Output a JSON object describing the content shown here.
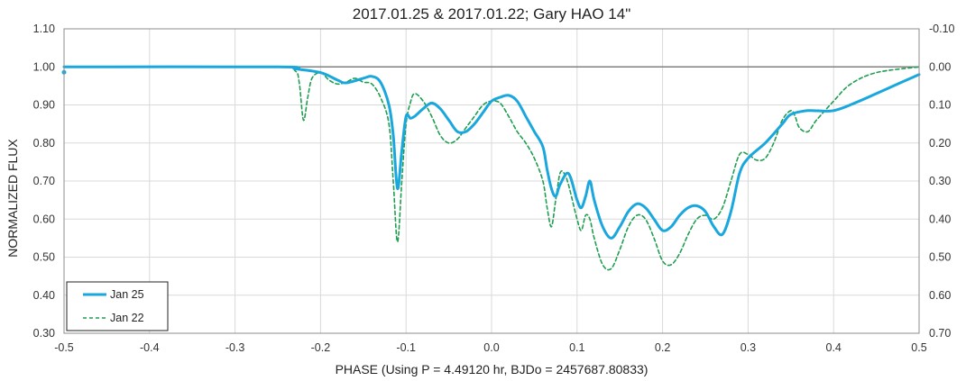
{
  "chart_data": {
    "type": "line",
    "title": "2017.01.25 & 2017.01.22; Gary HAO 14\"",
    "xlabel": "PHASE (Using P = 4.49120 hr, BJDo = 2457687.80833)",
    "ylabel": "NORMALIZED FLUX",
    "xlim": [
      -0.5,
      0.5
    ],
    "ylim": [
      0.3,
      1.1
    ],
    "y2lim": [
      0.7,
      -0.1
    ],
    "xticks": [
      "-0.5",
      "-0.4",
      "-0.3",
      "-0.2",
      "-0.1",
      "0.0",
      "0.1",
      "0.2",
      "0.3",
      "0.4",
      "0.5"
    ],
    "yticks": [
      "0.30",
      "0.40",
      "0.50",
      "0.60",
      "0.70",
      "0.80",
      "0.90",
      "1.00",
      "1.10"
    ],
    "y2ticks": [
      "0.70",
      "0.60",
      "0.50",
      "0.40",
      "0.30",
      "0.20",
      "0.10",
      "0.00",
      "-0.10"
    ],
    "grid": true,
    "reference_line": 1.0,
    "legend_position": "bottom-left",
    "series": [
      {
        "name": "Jan 25",
        "color": "#1aa7dd",
        "style": "solid",
        "x": [
          -0.5,
          -0.25,
          -0.23,
          -0.2,
          -0.18,
          -0.17,
          -0.15,
          -0.14,
          -0.13,
          -0.12,
          -0.115,
          -0.11,
          -0.105,
          -0.1,
          -0.095,
          -0.09,
          -0.08,
          -0.07,
          -0.06,
          -0.05,
          -0.04,
          -0.03,
          -0.02,
          -0.01,
          0.0,
          0.01,
          0.02,
          0.03,
          0.04,
          0.05,
          0.06,
          0.065,
          0.07,
          0.075,
          0.08,
          0.09,
          0.1,
          0.105,
          0.11,
          0.115,
          0.12,
          0.13,
          0.14,
          0.15,
          0.16,
          0.17,
          0.18,
          0.19,
          0.2,
          0.21,
          0.22,
          0.23,
          0.24,
          0.25,
          0.26,
          0.27,
          0.28,
          0.29,
          0.3,
          0.32,
          0.34,
          0.35,
          0.37,
          0.4,
          0.43,
          0.46,
          0.5
        ],
        "y": [
          1.0,
          1.0,
          0.995,
          0.985,
          0.965,
          0.958,
          0.97,
          0.975,
          0.96,
          0.9,
          0.82,
          0.68,
          0.78,
          0.87,
          0.865,
          0.87,
          0.89,
          0.905,
          0.89,
          0.86,
          0.83,
          0.83,
          0.85,
          0.88,
          0.91,
          0.92,
          0.925,
          0.91,
          0.87,
          0.83,
          0.79,
          0.73,
          0.68,
          0.66,
          0.69,
          0.72,
          0.65,
          0.63,
          0.66,
          0.7,
          0.65,
          0.58,
          0.55,
          0.58,
          0.62,
          0.64,
          0.63,
          0.6,
          0.57,
          0.58,
          0.61,
          0.63,
          0.635,
          0.62,
          0.58,
          0.56,
          0.62,
          0.72,
          0.76,
          0.8,
          0.85,
          0.875,
          0.885,
          0.885,
          0.91,
          0.94,
          0.98
        ]
      },
      {
        "name": "Jan 22",
        "color": "#1e9e50",
        "style": "dashed",
        "x": [
          -0.5,
          -0.25,
          -0.23,
          -0.225,
          -0.22,
          -0.215,
          -0.21,
          -0.2,
          -0.19,
          -0.18,
          -0.17,
          -0.16,
          -0.15,
          -0.14,
          -0.13,
          -0.12,
          -0.115,
          -0.11,
          -0.105,
          -0.1,
          -0.095,
          -0.09,
          -0.08,
          -0.07,
          -0.06,
          -0.05,
          -0.04,
          -0.03,
          -0.02,
          -0.01,
          0.0,
          0.01,
          0.02,
          0.03,
          0.04,
          0.05,
          0.06,
          0.065,
          0.07,
          0.075,
          0.08,
          0.085,
          0.09,
          0.1,
          0.105,
          0.11,
          0.115,
          0.12,
          0.13,
          0.14,
          0.15,
          0.16,
          0.17,
          0.18,
          0.19,
          0.2,
          0.21,
          0.22,
          0.23,
          0.24,
          0.25,
          0.26,
          0.27,
          0.28,
          0.29,
          0.3,
          0.31,
          0.32,
          0.33,
          0.34,
          0.35,
          0.355,
          0.36,
          0.37,
          0.38,
          0.4,
          0.42,
          0.45,
          0.5
        ],
        "y": [
          1.0,
          1.0,
          0.99,
          0.96,
          0.86,
          0.92,
          0.97,
          0.985,
          0.965,
          0.955,
          0.96,
          0.97,
          0.96,
          0.955,
          0.92,
          0.85,
          0.7,
          0.54,
          0.7,
          0.85,
          0.905,
          0.93,
          0.91,
          0.87,
          0.82,
          0.8,
          0.81,
          0.84,
          0.87,
          0.9,
          0.91,
          0.905,
          0.87,
          0.83,
          0.8,
          0.76,
          0.7,
          0.63,
          0.58,
          0.65,
          0.72,
          0.72,
          0.69,
          0.6,
          0.57,
          0.61,
          0.6,
          0.55,
          0.48,
          0.47,
          0.52,
          0.58,
          0.61,
          0.6,
          0.55,
          0.49,
          0.48,
          0.51,
          0.56,
          0.6,
          0.61,
          0.6,
          0.63,
          0.7,
          0.77,
          0.77,
          0.755,
          0.76,
          0.8,
          0.86,
          0.885,
          0.87,
          0.84,
          0.83,
          0.86,
          0.91,
          0.955,
          0.985,
          1.0
        ]
      }
    ]
  }
}
